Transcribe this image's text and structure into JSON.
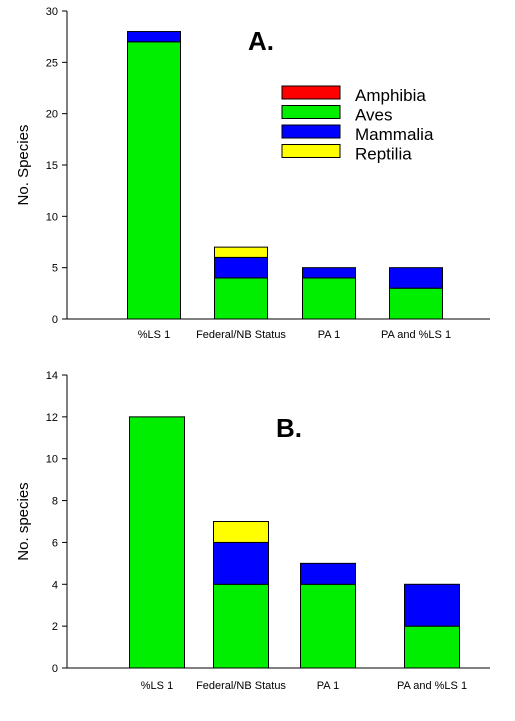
{
  "colors": {
    "Amphibia": "#ff0000",
    "Aves": "#00ee00",
    "Mammalia": "#0000ff",
    "Reptilia": "#ffff00"
  },
  "legend": [
    "Amphibia",
    "Aves",
    "Mammalia",
    "Reptilia"
  ],
  "chart_data": [
    {
      "type": "bar",
      "stacked": true,
      "panel_label": "A.",
      "ylabel": "No. Species",
      "xlabel": "",
      "ylim": [
        0,
        30
      ],
      "yticks": [
        0,
        5,
        10,
        15,
        20,
        25,
        30
      ],
      "categories": [
        "%LS 1",
        "Federal/NB Status",
        "PA 1",
        "PA and %LS 1"
      ],
      "series": [
        {
          "name": "Amphibia",
          "values": [
            0,
            0,
            0,
            0
          ]
        },
        {
          "name": "Aves",
          "values": [
            27,
            4,
            4,
            3
          ]
        },
        {
          "name": "Mammalia",
          "values": [
            1,
            2,
            1,
            2
          ]
        },
        {
          "name": "Reptilia",
          "values": [
            0,
            1,
            0,
            0
          ]
        }
      ],
      "legend_position": "upper-right"
    },
    {
      "type": "bar",
      "stacked": true,
      "panel_label": "B.",
      "ylabel": "No. species",
      "xlabel": "",
      "ylim": [
        0,
        14
      ],
      "yticks": [
        0,
        2,
        4,
        6,
        8,
        10,
        12,
        14
      ],
      "categories": [
        "%LS 1",
        "Federal/NB Status",
        "PA 1",
        "PA and %LS 1"
      ],
      "series": [
        {
          "name": "Amphibia",
          "values": [
            0,
            0,
            0,
            0
          ]
        },
        {
          "name": "Aves",
          "values": [
            12,
            4,
            4,
            2
          ]
        },
        {
          "name": "Mammalia",
          "values": [
            0,
            2,
            1,
            2
          ]
        },
        {
          "name": "Reptilia",
          "values": [
            0,
            1,
            0,
            0
          ]
        }
      ]
    }
  ]
}
